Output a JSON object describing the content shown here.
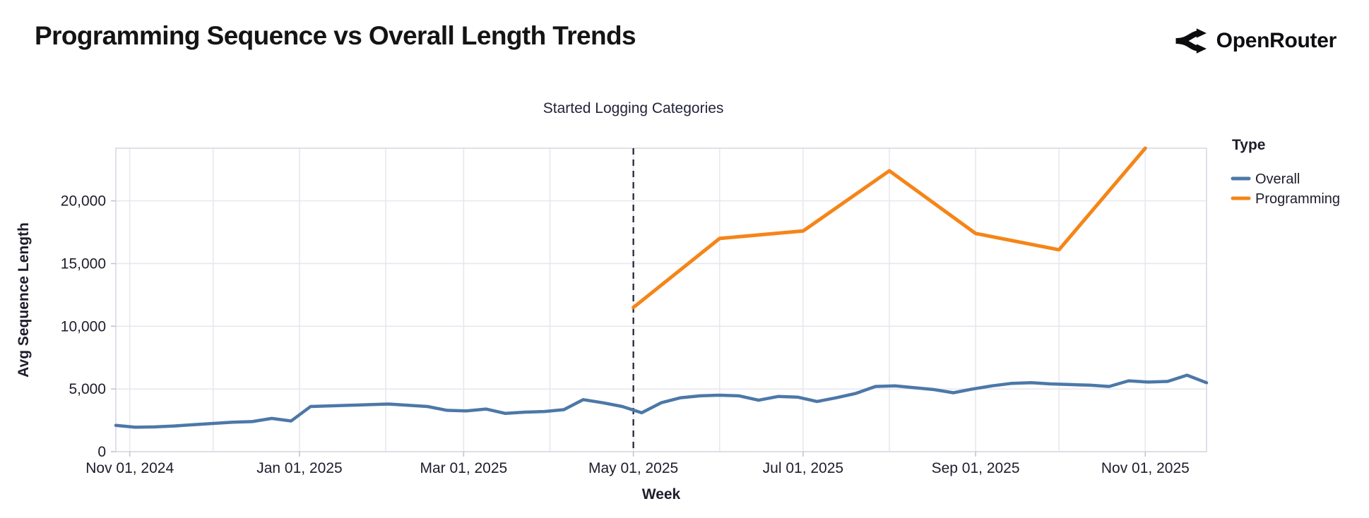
{
  "header": {
    "title": "Programming Sequence vs Overall Length Trends",
    "brand": "OpenRouter"
  },
  "chart_data": {
    "type": "line",
    "title": "Programming Sequence vs Overall Length Trends",
    "xlabel": "Week",
    "ylabel": "Avg Sequence Length",
    "x_domain": [
      "2024-10-27",
      "2025-11-23"
    ],
    "ylim": [
      0,
      24200
    ],
    "grid": true,
    "y_ticks": [
      0,
      5000,
      10000,
      15000,
      20000
    ],
    "x_ticks": [
      {
        "label": "Nov 01, 2024",
        "date": "2024-11-01"
      },
      {
        "label": "Jan 01, 2025",
        "date": "2025-01-01"
      },
      {
        "label": "Mar 01, 2025",
        "date": "2025-03-01"
      },
      {
        "label": "May 01, 2025",
        "date": "2025-05-01"
      },
      {
        "label": "Jul 01, 2025",
        "date": "2025-07-01"
      },
      {
        "label": "Sep 01, 2025",
        "date": "2025-09-01"
      },
      {
        "label": "Nov 01, 2025",
        "date": "2025-11-01"
      }
    ],
    "month_gridlines": [
      "2024-11-01",
      "2024-12-01",
      "2025-01-01",
      "2025-02-01",
      "2025-03-01",
      "2025-04-01",
      "2025-05-01",
      "2025-06-01",
      "2025-07-01",
      "2025-08-01",
      "2025-09-01",
      "2025-10-01",
      "2025-11-01"
    ],
    "annotation": {
      "text": "Started Logging Categories",
      "date": "2025-05-01"
    },
    "legend": {
      "title": "Type",
      "position": "right",
      "entries": [
        {
          "label": "Overall",
          "color": "#4c78a8"
        },
        {
          "label": "Programming",
          "color": "#f58518"
        }
      ]
    },
    "series": [
      {
        "name": "Overall",
        "color": "#4c78a8",
        "stroke_width": 4.5,
        "dates": [
          "2024-10-27",
          "2024-11-03",
          "2024-11-10",
          "2024-11-17",
          "2024-11-24",
          "2024-12-01",
          "2024-12-08",
          "2024-12-15",
          "2024-12-22",
          "2024-12-29",
          "2025-01-05",
          "2025-01-12",
          "2025-01-19",
          "2025-01-26",
          "2025-02-02",
          "2025-02-09",
          "2025-02-16",
          "2025-02-23",
          "2025-03-02",
          "2025-03-09",
          "2025-03-16",
          "2025-03-23",
          "2025-03-30",
          "2025-04-06",
          "2025-04-13",
          "2025-04-20",
          "2025-04-27",
          "2025-05-04",
          "2025-05-11",
          "2025-05-18",
          "2025-05-25",
          "2025-06-01",
          "2025-06-08",
          "2025-06-15",
          "2025-06-22",
          "2025-06-29",
          "2025-07-06",
          "2025-07-13",
          "2025-07-20",
          "2025-07-27",
          "2025-08-03",
          "2025-08-10",
          "2025-08-17",
          "2025-08-24",
          "2025-08-31",
          "2025-09-07",
          "2025-09-14",
          "2025-09-21",
          "2025-09-28",
          "2025-10-05",
          "2025-10-12",
          "2025-10-19",
          "2025-10-26",
          "2025-11-02",
          "2025-11-09",
          "2025-11-16",
          "2025-11-23"
        ],
        "values": [
          2100,
          1950,
          1975,
          2050,
          2150,
          2250,
          2350,
          2400,
          2650,
          2450,
          3600,
          3650,
          3700,
          3750,
          3800,
          3700,
          3600,
          3300,
          3250,
          3400,
          3050,
          3150,
          3200,
          3350,
          4150,
          3900,
          3600,
          3100,
          3900,
          4300,
          4450,
          4500,
          4450,
          4100,
          4400,
          4350,
          4000,
          4300,
          4650,
          5200,
          5250,
          5100,
          4950,
          4700,
          5000,
          5250,
          5450,
          5500,
          5400,
          5350,
          5300,
          5200,
          5650,
          5550,
          5600,
          6100,
          5500
        ]
      },
      {
        "name": "Programming",
        "color": "#f58518",
        "stroke_width": 5,
        "dates": [
          "2025-05-01",
          "2025-06-01",
          "2025-07-01",
          "2025-08-01",
          "2025-09-01",
          "2025-10-01",
          "2025-11-01"
        ],
        "values": [
          11500,
          17000,
          17600,
          22400,
          17400,
          16100,
          24200
        ]
      }
    ]
  }
}
